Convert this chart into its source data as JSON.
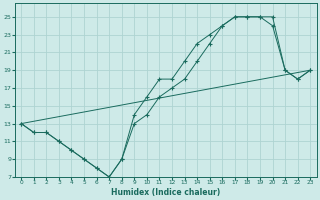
{
  "xlabel": "Humidex (Indice chaleur)",
  "bg_color": "#ceeae8",
  "grid_color": "#aed4d2",
  "line_color": "#1a6b5e",
  "xlim": [
    -0.5,
    23.5
  ],
  "ylim": [
    7,
    26.5
  ],
  "xticks": [
    0,
    1,
    2,
    3,
    4,
    5,
    6,
    7,
    8,
    9,
    10,
    11,
    12,
    13,
    14,
    15,
    16,
    17,
    18,
    19,
    20,
    21,
    22,
    23
  ],
  "yticks": [
    7,
    9,
    11,
    13,
    15,
    17,
    19,
    21,
    23,
    25
  ],
  "line1_x": [
    0,
    1,
    2,
    3,
    4,
    5,
    6,
    7,
    8,
    9,
    10,
    11,
    12,
    13,
    14,
    15,
    16,
    17,
    18,
    19,
    20,
    21,
    22,
    23
  ],
  "line1_y": [
    13,
    12,
    12,
    11,
    10,
    9,
    8,
    7,
    9,
    13,
    14,
    16,
    17,
    18,
    20,
    22,
    24,
    25,
    25,
    25,
    24,
    19,
    18,
    19
  ],
  "line2_x": [
    0,
    1,
    2,
    3,
    4,
    5,
    6,
    7,
    8,
    9,
    10,
    11,
    12,
    13,
    14,
    15,
    16,
    17,
    18,
    19,
    20,
    21,
    22,
    23
  ],
  "line2_y": [
    13,
    12,
    12,
    11,
    10,
    9,
    8,
    7,
    9,
    14,
    16,
    18,
    18,
    20,
    22,
    23,
    24,
    25,
    25,
    25,
    25,
    19,
    18,
    19
  ],
  "line3_x": [
    0,
    23
  ],
  "line3_y": [
    13,
    19
  ]
}
